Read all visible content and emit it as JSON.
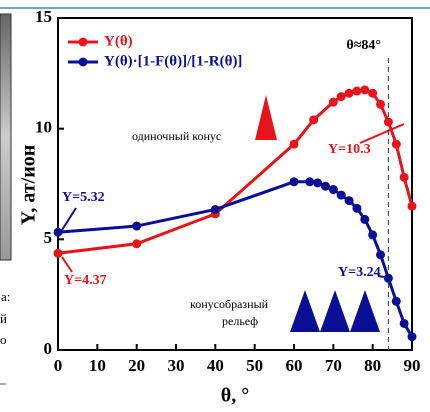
{
  "chart_data": {
    "type": "line",
    "y_label": "Y, ат/ион",
    "x_label": "θ, °",
    "series": [
      {
        "name": "Y(θ)",
        "color": "#e8141b",
        "x": [
          0,
          20,
          40,
          60,
          65,
          70,
          72,
          74,
          76,
          78,
          80,
          82,
          84,
          86,
          88,
          90
        ],
        "values": [
          4.37,
          4.8,
          6.15,
          9.3,
          10.4,
          11.2,
          11.45,
          11.6,
          11.7,
          11.75,
          11.6,
          11.1,
          10.3,
          9.3,
          7.8,
          6.5
        ]
      },
      {
        "name": "Y(θ)·[1-F(θ)]/[1-R(θ)]",
        "color": "#0a0f96",
        "x": [
          0,
          20,
          40,
          60,
          64,
          66,
          68,
          70,
          72,
          74,
          76,
          78,
          80,
          82,
          84,
          86,
          88,
          90
        ],
        "values": [
          5.32,
          5.6,
          6.35,
          7.6,
          7.6,
          7.55,
          7.4,
          7.25,
          7.0,
          6.75,
          6.4,
          5.9,
          5.2,
          4.3,
          3.24,
          2.2,
          1.2,
          0.6
        ]
      }
    ],
    "xlim": [
      0,
      90
    ],
    "xticks": [
      0,
      10,
      20,
      30,
      40,
      50,
      60,
      70,
      80,
      90
    ],
    "ylim": [
      0,
      15
    ],
    "yticks": [
      0,
      5,
      10,
      15
    ],
    "vline": 84,
    "vline_label": "θ≈84°",
    "annotations": [
      "Y=10.3",
      "Y=5.32",
      "Y=4.37",
      "Y=3.24",
      "одиночный конус",
      "конусобразный",
      "рельеф"
    ]
  },
  "left_fragments": [
    "а:",
    "й",
    "о"
  ]
}
